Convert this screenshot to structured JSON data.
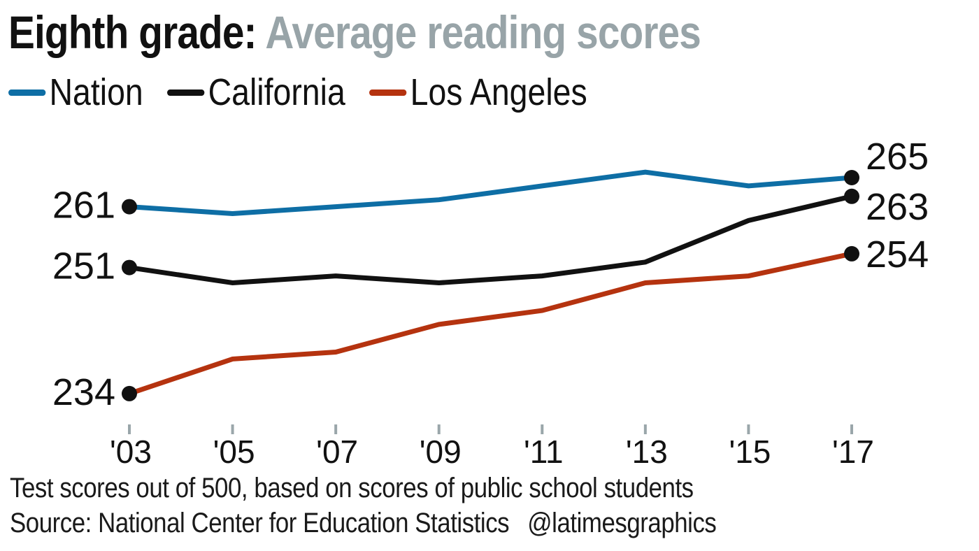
{
  "header": {
    "title_dark": "Eighth grade:",
    "title_gray": "Average reading scores"
  },
  "colors": {
    "nation": "#0e6ea5",
    "california": "#111111",
    "los_angeles": "#b5330f",
    "title_gray": "#98a4a8",
    "tick": "#9aa6aa",
    "dot": "#111111"
  },
  "footer": {
    "note": "Test scores out of 500, based on scores of public school students",
    "source": "Source: National Center for Education Statistics",
    "credit": "@latimesgraphics"
  },
  "chart_data": {
    "type": "line",
    "title": "Eighth grade: Average reading scores",
    "xlabel": "",
    "ylabel": "",
    "x": [
      "'03",
      "'05",
      "'07",
      "'09",
      "'11",
      "'13",
      "'15",
      "'17"
    ],
    "years": [
      2003,
      2005,
      2007,
      2009,
      2011,
      2013,
      2015,
      2017
    ],
    "ylim": [
      234,
      266
    ],
    "grid": false,
    "legend": "top-left",
    "series": [
      {
        "name": "Nation",
        "key": "nation",
        "values": [
          261,
          260,
          261,
          262,
          264,
          266,
          264,
          265
        ],
        "start_label": "261",
        "end_label": "265"
      },
      {
        "name": "California",
        "key": "california",
        "values": [
          251,
          250,
          251,
          250,
          251,
          253,
          259,
          263
        ],
        "start_label": "251",
        "end_label": "263"
      },
      {
        "name": "Los Angeles",
        "key": "los_angeles",
        "values": [
          234,
          239,
          240,
          244,
          246,
          250,
          251,
          254
        ],
        "start_label": "234",
        "end_label": "254"
      }
    ]
  }
}
